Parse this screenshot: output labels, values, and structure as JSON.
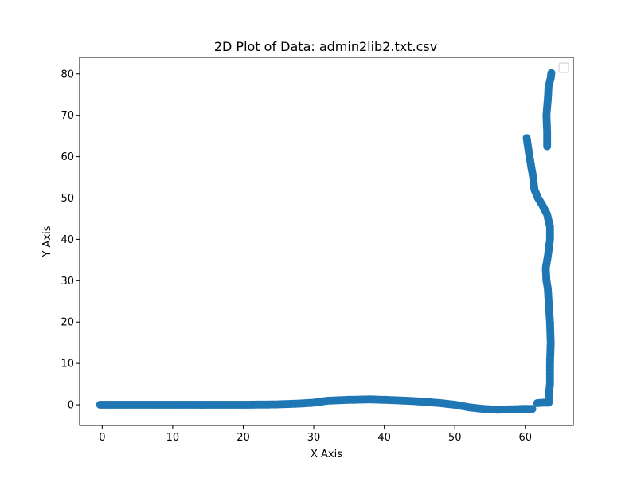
{
  "chart_data": {
    "type": "scatter",
    "title": "2D Plot of Data: admin2lib2.txt.csv",
    "xlabel": "X Axis",
    "ylabel": "Y Axis",
    "xlim": [
      -3.2,
      66.8
    ],
    "ylim": [
      -5,
      84
    ],
    "xticks": [
      0,
      10,
      20,
      30,
      40,
      50,
      60
    ],
    "yticks": [
      0,
      10,
      20,
      30,
      40,
      50,
      60,
      70,
      80
    ],
    "grid": false,
    "legend": "top-right (empty)",
    "color": "#1f77b4",
    "segments": [
      [
        [
          -0.3,
          0
        ],
        [
          5,
          0
        ],
        [
          10,
          0
        ],
        [
          15,
          0
        ],
        [
          20,
          0
        ],
        [
          25,
          0.1
        ],
        [
          28,
          0.3
        ],
        [
          30,
          0.5
        ],
        [
          32,
          1
        ],
        [
          35,
          1.2
        ],
        [
          38,
          1.3
        ],
        [
          40,
          1.2
        ],
        [
          43,
          1.0
        ],
        [
          45,
          0.8
        ],
        [
          48,
          0.4
        ],
        [
          50,
          0
        ],
        [
          52,
          -0.6
        ],
        [
          54,
          -1.0
        ],
        [
          56,
          -1.2
        ],
        [
          58,
          -1.1
        ],
        [
          60,
          -1.0
        ],
        [
          61,
          -1.0
        ]
      ],
      [
        [
          61.7,
          0.4
        ],
        [
          62.5,
          0.5
        ],
        [
          63.3,
          0.5
        ]
      ],
      [
        [
          63.3,
          0.5
        ],
        [
          63.3,
          2
        ],
        [
          63.5,
          5
        ],
        [
          63.5,
          10
        ],
        [
          63.6,
          15
        ],
        [
          63.5,
          20
        ],
        [
          63.3,
          25
        ],
        [
          63.2,
          28
        ],
        [
          63.0,
          30
        ],
        [
          62.9,
          33
        ],
        [
          63.2,
          36
        ],
        [
          63.5,
          40
        ],
        [
          63.5,
          43
        ],
        [
          63.1,
          46
        ],
        [
          62.5,
          48
        ],
        [
          61.8,
          50
        ],
        [
          61.3,
          52
        ],
        [
          61.1,
          55
        ],
        [
          60.8,
          58
        ],
        [
          60.5,
          61
        ],
        [
          60.2,
          64.5
        ]
      ],
      [
        [
          63.1,
          62.5
        ],
        [
          63.1,
          66
        ],
        [
          63.0,
          70
        ],
        [
          63.2,
          74
        ],
        [
          63.3,
          77
        ],
        [
          63.6,
          79
        ],
        [
          63.7,
          80.2
        ]
      ]
    ]
  }
}
